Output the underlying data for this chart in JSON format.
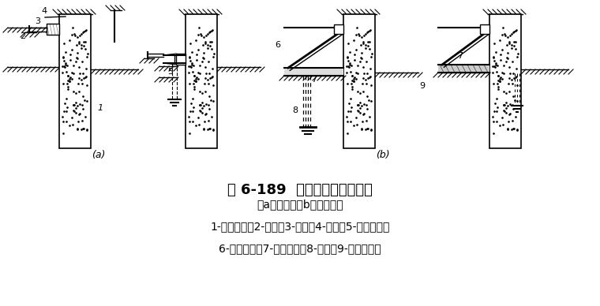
{
  "title": "图 6-189  水泥土墙加临时支撑",
  "subtitle": "（a）对撑；（b）竖向斜撑",
  "legend_line1": "1-水泥土墙；2-围檩；3-对撑；4-吊索；5-支承型钢；",
  "legend_line2": "6-竖向斜撑；7-铺地型钢；8-板柱；9-混凝土垫层",
  "bg_color": "#ffffff",
  "line_color": "#000000",
  "title_fontsize": 13,
  "text_fontsize": 10,
  "subtitle_fontsize": 10
}
